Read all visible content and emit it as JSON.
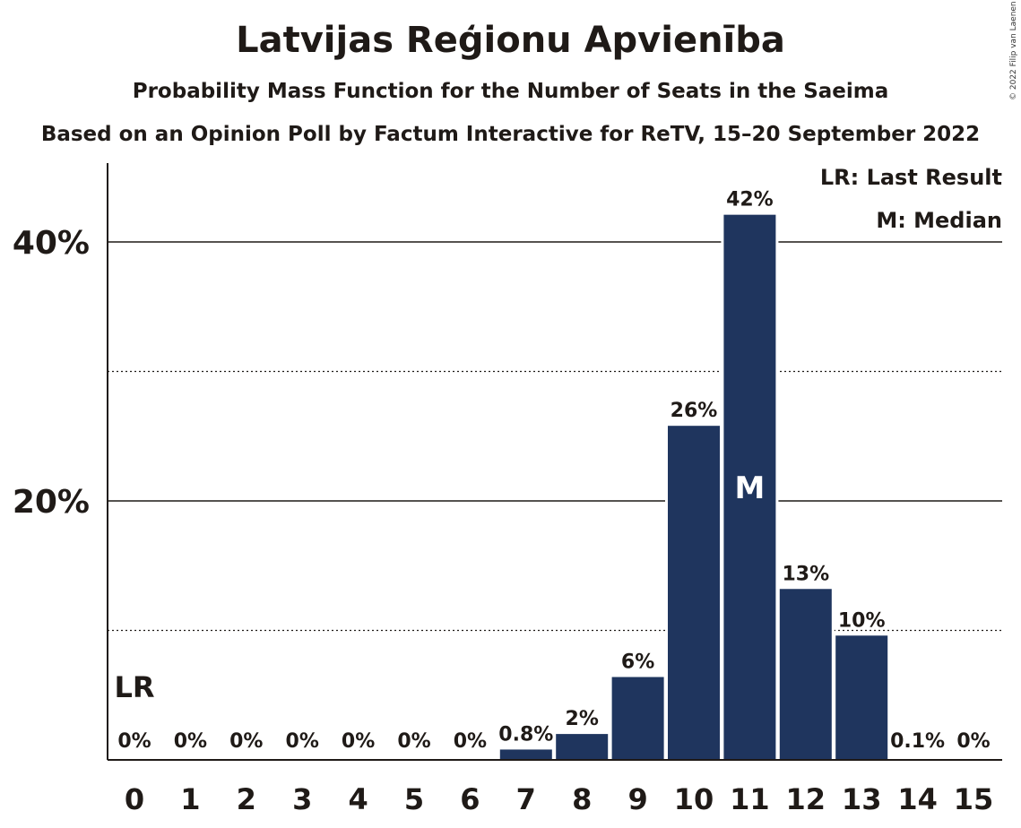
{
  "title": "Latvijas Reģionu Apvienība",
  "subtitle": "Probability Mass Function for the Number of Seats in the Saeima",
  "subtitle2": "Based on an Opinion Poll by Factum Interactive for ReTV, 15–20 September 2022",
  "copyright": "© 2022 Filip van Laenen",
  "legend": {
    "last_result": "LR: Last Result",
    "median": "M: Median"
  },
  "colors": {
    "bar": "#1f355e",
    "text": "#1f1a17",
    "median_label": "#ffffff"
  },
  "chart_data": {
    "type": "bar",
    "categories": [
      "0",
      "1",
      "2",
      "3",
      "4",
      "5",
      "6",
      "7",
      "8",
      "9",
      "10",
      "11",
      "12",
      "13",
      "14",
      "15"
    ],
    "values": [
      0,
      0,
      0,
      0,
      0,
      0,
      0,
      0.8,
      2,
      6.4,
      25.8,
      42.1,
      13.2,
      9.6,
      0.1,
      0
    ],
    "data_labels": [
      "0%",
      "0%",
      "0%",
      "0%",
      "0%",
      "0%",
      "0%",
      "0.8%",
      "2%",
      "6%",
      "26%",
      "42%",
      "13%",
      "10%",
      "0.1%",
      "0%"
    ],
    "ylim": [
      0,
      46
    ],
    "y_ticks": [
      {
        "value": 20,
        "label": "20%"
      },
      {
        "value": 40,
        "label": "40%"
      }
    ],
    "minor_gridlines": [
      10,
      30
    ],
    "last_result": {
      "seat": "0",
      "label": "LR"
    },
    "median": {
      "seat": "11",
      "label": "M"
    }
  }
}
